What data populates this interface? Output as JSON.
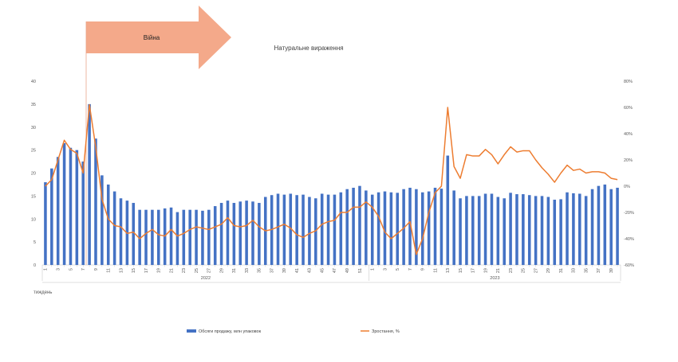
{
  "chart_data": {
    "type": "bar",
    "title": "Натуральне вираження",
    "annotation": "Війна",
    "xlabel": "тиждень",
    "annotation_week_index": 6,
    "years": [
      {
        "label": "2022",
        "start_index": 0,
        "end_index": 51
      },
      {
        "label": "2023",
        "start_index": 52,
        "end_index": 91
      }
    ],
    "weeks": [
      1,
      2,
      3,
      4,
      5,
      6,
      7,
      8,
      9,
      10,
      11,
      12,
      13,
      14,
      15,
      16,
      17,
      18,
      19,
      20,
      21,
      22,
      23,
      24,
      25,
      26,
      27,
      28,
      29,
      30,
      31,
      32,
      33,
      34,
      35,
      36,
      37,
      38,
      39,
      40,
      41,
      42,
      43,
      44,
      45,
      46,
      47,
      48,
      49,
      50,
      51,
      52,
      1,
      2,
      3,
      4,
      5,
      6,
      7,
      8,
      9,
      10,
      11,
      12,
      13,
      14,
      15,
      16,
      17,
      18,
      19,
      20,
      21,
      22,
      23,
      24,
      25,
      26,
      27,
      28,
      29,
      30,
      31,
      32,
      33,
      34,
      35,
      36,
      37,
      38,
      39,
      40
    ],
    "y_left": {
      "min": 0,
      "max": 40,
      "step": 5
    },
    "y_right": {
      "min": -60,
      "max": 80,
      "step": 20,
      "suffix": "%"
    },
    "series": [
      {
        "name": "Обсяги продажу, млн упаковок",
        "axis": "left",
        "color": "#4472C4",
        "values": [
          18,
          21,
          23.5,
          26.5,
          25.5,
          25,
          22.5,
          35,
          27.5,
          19.5,
          17.5,
          16,
          14.5,
          14,
          13.5,
          12,
          12,
          12,
          12,
          12.3,
          12.5,
          11.5,
          12,
          12,
          12,
          11.8,
          12,
          12.8,
          13.5,
          14,
          13.5,
          13.8,
          14,
          13.8,
          13.5,
          14.8,
          15.2,
          15.5,
          15.3,
          15.5,
          15.2,
          15.3,
          14.8,
          14.5,
          15.5,
          15.3,
          15.3,
          15.8,
          16.5,
          16.8,
          17.2,
          16.2,
          15.3,
          15.8,
          16,
          15.8,
          15.7,
          16.5,
          16.8,
          16.5,
          15.8,
          16,
          16.8,
          16.6,
          23.8,
          16.2,
          14.5,
          15,
          15,
          15,
          15.5,
          15.5,
          14.8,
          14.5,
          15.7,
          15.4,
          15.4,
          15.2,
          15,
          15,
          14.8,
          14.2,
          14.3,
          15.8,
          15.6,
          15.5,
          15,
          16.5,
          17.2,
          17.5,
          16.5,
          16.8
        ]
      },
      {
        "name": "Зростання, %",
        "axis": "right",
        "color": "#ED7D31",
        "values": [
          0,
          5,
          20,
          35,
          28,
          25,
          10,
          62,
          30,
          -10,
          -25,
          -30,
          -31,
          -36,
          -35,
          -40,
          -36,
          -33,
          -37,
          -38,
          -33,
          -38,
          -36,
          -33,
          -31,
          -32,
          -33,
          -31,
          -29,
          -24,
          -30,
          -31,
          -30,
          -26,
          -31,
          -34,
          -33,
          -31,
          -29,
          -32,
          -37,
          -39,
          -36,
          -34,
          -29,
          -27,
          -26,
          -20,
          -20,
          -16,
          -16,
          -12,
          -16,
          -23,
          -35,
          -40,
          -36,
          -32,
          -27,
          -52,
          -40,
          -20,
          -5,
          0,
          60,
          15,
          6,
          24,
          23,
          23,
          28,
          24,
          17,
          24,
          30,
          26,
          27,
          27,
          20,
          14,
          9,
          3,
          10,
          16,
          12,
          13,
          10,
          11,
          11,
          10,
          6,
          5
        ]
      }
    ],
    "legend_position": "bottom",
    "grid": false
  }
}
